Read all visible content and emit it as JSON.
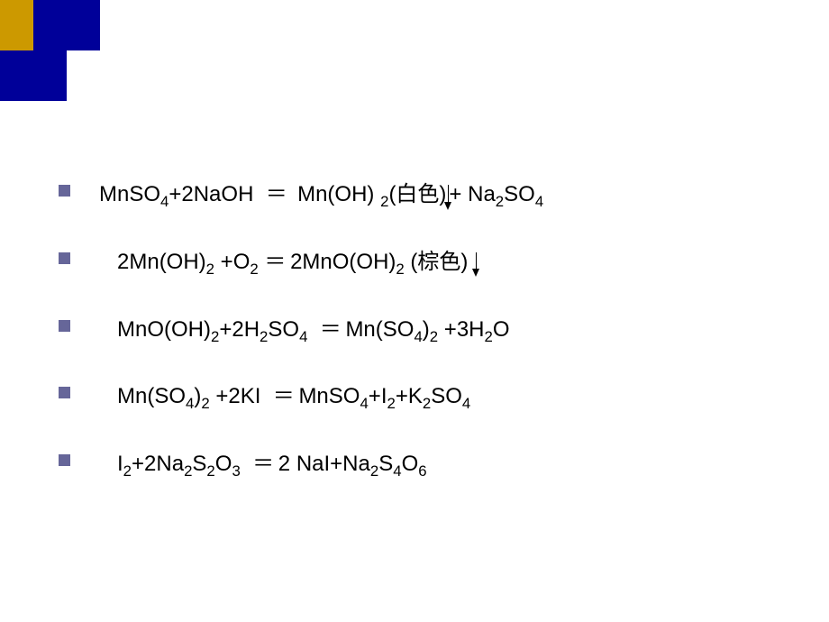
{
  "decoration": {
    "yellow_color": "#cc9900",
    "blue_color": "#000099"
  },
  "bullet_color": "#666699",
  "equations": {
    "eq1": {
      "lhs": "MnSO",
      "lhs_sub1": "4",
      "lhs2": "+2NaOH",
      "eq": "＝",
      "rhs1": "Mn(OH)",
      "rhs1_sub": "2",
      "rhs1_note": "(白色)",
      "rhs2": "+ Na",
      "rhs2_sub1": "2",
      "rhs2_part": "SO",
      "rhs2_sub2": "4"
    },
    "eq2": {
      "lhs1": "2Mn(OH)",
      "lhs1_sub": "2",
      "lhs2": " +O",
      "lhs2_sub": "2",
      "eq": "＝",
      "rhs1": " 2MnO(OH)",
      "rhs1_sub": "2",
      "rhs_note": " (棕色)"
    },
    "eq3": {
      "lhs1": "MnO(OH)",
      "lhs1_sub": "2",
      "lhs2": "+2H",
      "lhs2_sub": "2",
      "lhs3": "SO",
      "lhs3_sub": "4",
      "eq": "＝",
      "rhs1": " Mn(SO",
      "rhs1_sub": "4",
      "rhs2": ")",
      "rhs2_sub": "2",
      "rhs3": " +3H",
      "rhs3_sub": "2",
      "rhs4": "O"
    },
    "eq4": {
      "lhs1": "Mn(SO",
      "lhs1_sub": "4",
      "lhs2": ")",
      "lhs2_sub": "2",
      "lhs3": " +2KI",
      "eq": "＝",
      "rhs1": " MnSO",
      "rhs1_sub": "4",
      "rhs2": "+I",
      "rhs2_sub": "2",
      "rhs3": "+K",
      "rhs3_sub": "2",
      "rhs4": "SO",
      "rhs4_sub": "4"
    },
    "eq5": {
      "lhs1": "I",
      "lhs1_sub": "2",
      "lhs2": "+2Na",
      "lhs2_sub": "2",
      "lhs3": "S",
      "lhs3_sub": "2",
      "lhs4": "O",
      "lhs4_sub": "3",
      "eq": "＝",
      "rhs1": " 2 NaI+Na",
      "rhs1_sub": "2",
      "rhs2": "S",
      "rhs2_sub": "4",
      "rhs3": "O",
      "rhs3_sub": "6"
    }
  }
}
